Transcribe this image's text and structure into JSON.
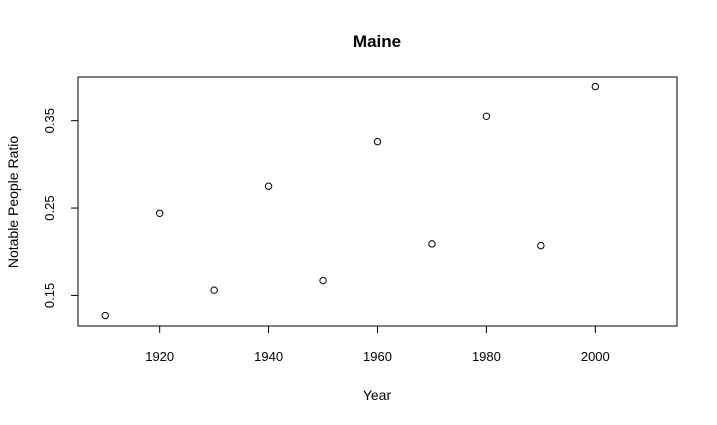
{
  "chart_data": {
    "type": "scatter",
    "title": "Maine",
    "xlabel": "Year",
    "ylabel": "Notable People Ratio",
    "xlim": [
      1905,
      2015
    ],
    "ylim": [
      0.115,
      0.4
    ],
    "x_ticks": [
      1920,
      1940,
      1960,
      1980,
      2000
    ],
    "y_ticks": [
      0.15,
      0.25,
      0.35
    ],
    "grid": false,
    "marker": "open-circle",
    "point_color": "#000000",
    "points": [
      {
        "x": 1910,
        "y": 0.127
      },
      {
        "x": 1920,
        "y": 0.244
      },
      {
        "x": 1930,
        "y": 0.156
      },
      {
        "x": 1940,
        "y": 0.275
      },
      {
        "x": 1950,
        "y": 0.167
      },
      {
        "x": 1960,
        "y": 0.326
      },
      {
        "x": 1970,
        "y": 0.209
      },
      {
        "x": 1980,
        "y": 0.355
      },
      {
        "x": 1990,
        "y": 0.207
      },
      {
        "x": 2000,
        "y": 0.389
      }
    ]
  }
}
